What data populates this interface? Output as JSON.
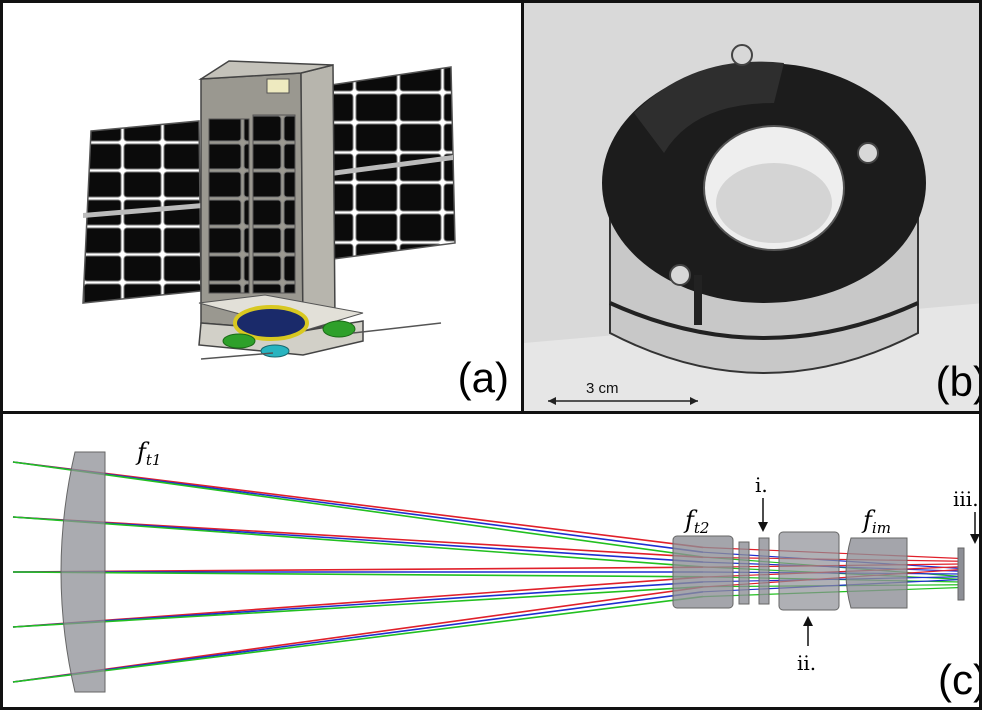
{
  "panels": {
    "a": {
      "label": "(a)"
    },
    "b": {
      "label": "(b)",
      "scale_bar": "3 cm"
    },
    "c": {
      "label": "(c)",
      "lens_labels": {
        "ft1_base": "f",
        "ft1_sub": "t1",
        "ft2_base": "f",
        "ft2_sub": "t2",
        "fim_base": "f",
        "fim_sub": "im"
      },
      "markers": {
        "i": "i.",
        "ii": "ii.",
        "iii": "iii."
      }
    }
  },
  "colors": {
    "ray_red": "#e0202a",
    "ray_blue": "#1f2fd0",
    "ray_green": "#22c020",
    "lens_gray": "#8d8f96",
    "satellite_body": "#9a9890"
  }
}
